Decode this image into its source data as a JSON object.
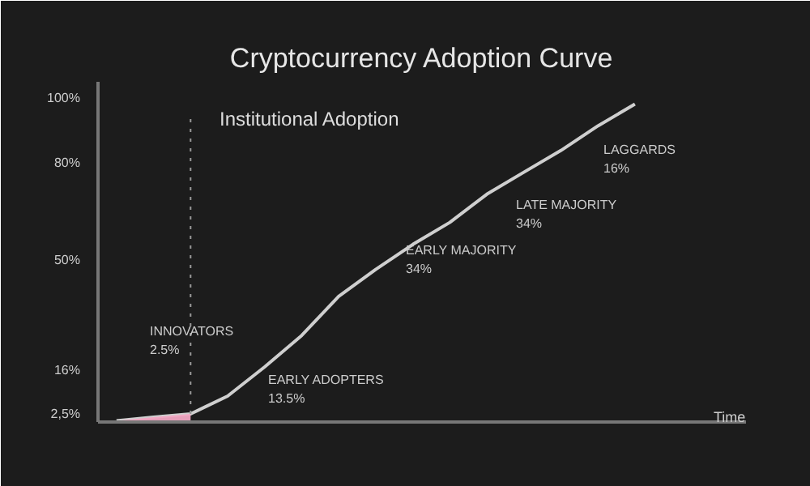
{
  "chart_data": {
    "type": "line",
    "title": "Cryptocurrency Adoption Curve",
    "categories": [
      null,
      null,
      null,
      null,
      null,
      null,
      null,
      null,
      null,
      null,
      null,
      null,
      null,
      null,
      null
    ],
    "series": [
      {
        "color": "#cfcfcf",
        "values": [
          0.4,
          1.5,
          2.5,
          8.0,
          17,
          26.7,
          38.8,
          47.1,
          54.8,
          61.6,
          70.3,
          77.1,
          83.8,
          91.4,
          98.1
        ]
      },
      {
        "type": "area",
        "color": "#f2a7c3",
        "line_style": "dotted",
        "values": [
          0.4,
          1.5,
          2.5,
          null,
          null,
          null,
          null,
          null,
          null,
          null,
          null,
          null,
          null,
          null,
          null
        ]
      }
    ],
    "ylim": [
      0,
      105
    ],
    "yticks": [
      {
        "value": 2.5,
        "label": "2,5%"
      },
      {
        "value": 16,
        "label": "16%"
      },
      {
        "value": 50,
        "label": "50%"
      },
      {
        "value": 80,
        "label": "80%"
      },
      {
        "value": 100,
        "label": "100%"
      }
    ],
    "grid": false,
    "annotations": [
      "Institutional Adoption",
      "INNOVATORS\n2.5%",
      "EARLY ADOPTERS\n13.5%",
      "EARLY MAJORITY\n34%",
      "LATE MAJORITY\n34%",
      "LAGGARDS\n16%",
      "Time"
    ]
  }
}
